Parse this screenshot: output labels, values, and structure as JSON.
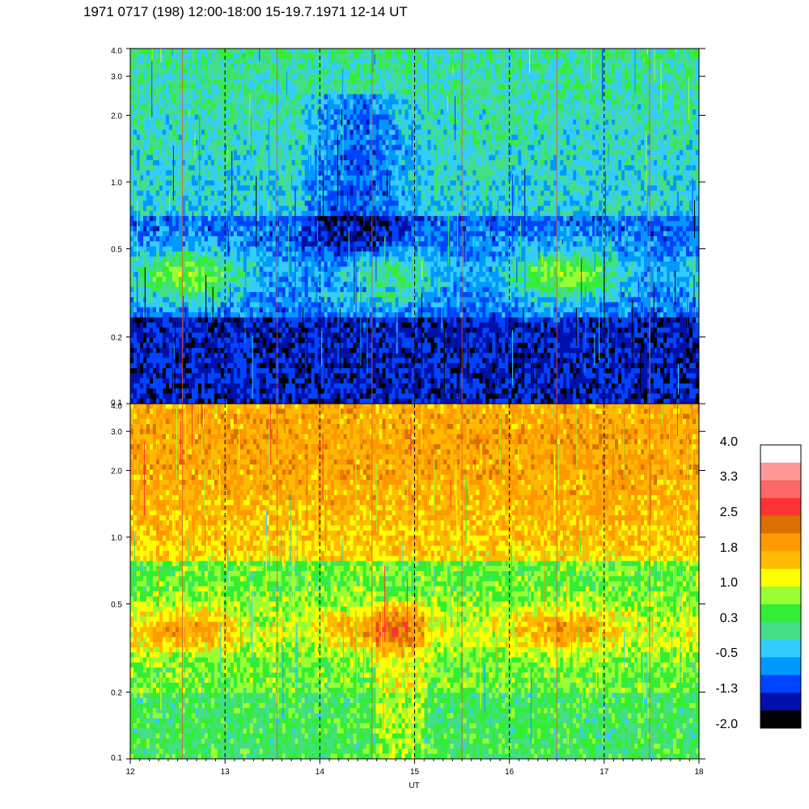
{
  "title": "1971 0717 (198) 12:00-18:00 15-19.7.1971  12-14 UT",
  "chart_data": [
    {
      "type": "heatmap",
      "panel": "upper",
      "x": [
        12,
        13,
        14,
        15,
        16,
        17,
        18
      ],
      "xlim": [
        12,
        18
      ],
      "ylim": [
        0.1,
        4.0
      ],
      "yscale": "log",
      "yticks": [
        "0.1",
        "0.2",
        "0.5",
        "1.0",
        "2.0",
        "3.0",
        "4.0"
      ],
      "yticks_values": [
        0.1,
        0.2,
        0.5,
        1.0,
        2.0,
        3.0,
        4.0
      ],
      "dashed_gridlines_x": [
        13,
        14,
        15,
        16,
        17
      ],
      "band_centers": [
        0.4,
        0.2,
        1.5
      ],
      "dominant_levels": [
        0.3,
        -0.5,
        -1.3
      ]
    },
    {
      "type": "heatmap",
      "panel": "lower",
      "x": [
        12,
        13,
        14,
        15,
        16,
        17,
        18
      ],
      "xlim": [
        12,
        18
      ],
      "ylim": [
        0.1,
        4.0
      ],
      "yscale": "log",
      "yticks": [
        "0.1",
        "0.2",
        "0.5",
        "1.0",
        "2.0",
        "3.0",
        "4.0"
      ],
      "yticks_values": [
        0.1,
        0.2,
        0.5,
        1.0,
        2.0,
        3.0,
        4.0
      ],
      "dashed_gridlines_x": [
        13,
        14,
        15,
        16,
        17
      ],
      "dominant_levels": [
        1.8,
        1.0,
        0.3
      ]
    }
  ],
  "xaxis": {
    "label": "UT",
    "ticks": [
      "12",
      "13",
      "14",
      "15",
      "16",
      "17",
      "18"
    ],
    "tick_values": [
      12,
      13,
      14,
      15,
      16,
      17,
      18
    ]
  },
  "colorbar": {
    "labels": [
      "4.0",
      "3.3",
      "2.5",
      "1.8",
      "1.0",
      "0.3",
      "-0.5",
      "-1.3",
      "-2.0"
    ],
    "colors": [
      "#ffffff",
      "#ff9999",
      "#ff6666",
      "#ff3333",
      "#d97000",
      "#ff9900",
      "#ffbb00",
      "#ffff00",
      "#99ff33",
      "#33ee33",
      "#44dd88",
      "#33ccff",
      "#0099ff",
      "#0044ff",
      "#0011aa",
      "#000000"
    ]
  }
}
